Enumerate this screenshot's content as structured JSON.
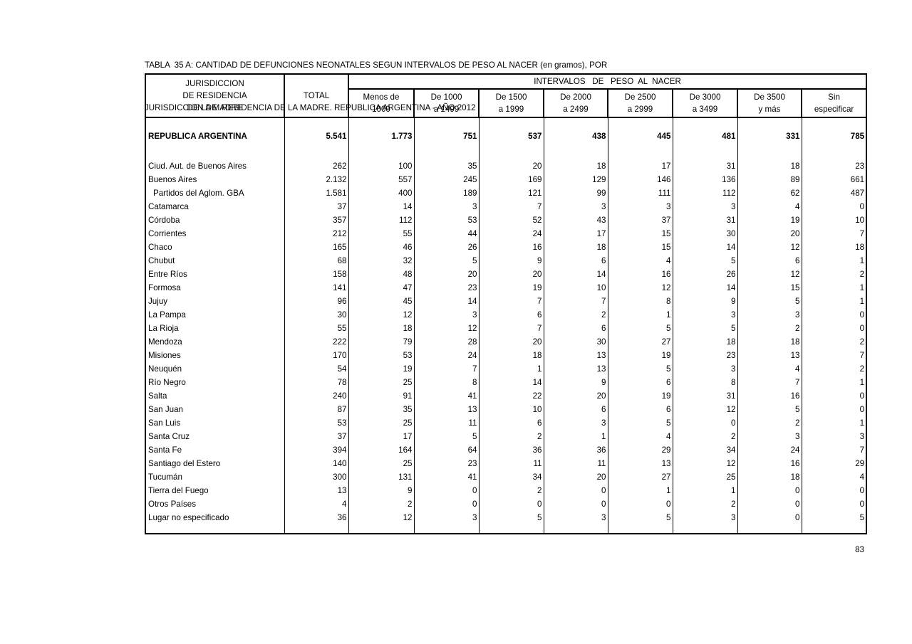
{
  "page": {
    "title_line1": "TABLA  35 A: CANTIDAD DE DEFUNCIONES NEONATALES SEGUN INTERVALOS DE PESO AL NACER (en gramos), POR",
    "title_line2": "JURISDICCION DE  RESIDENCIA DE LA MADRE. REPUBLICA ARGENTINA - AÑO 2012",
    "page_number": "83"
  },
  "colors": {
    "text": "#000000",
    "background": "#ffffff",
    "border": "#000000"
  },
  "table": {
    "header": {
      "col_jurisdiccion": [
        "JURISDICCION",
        "DE RESIDENCIA",
        "DE LA MADRE"
      ],
      "col_total": "TOTAL",
      "group_header": "INTERVALOS   DE   PESO  AL  NACER",
      "weight_columns": [
        [
          "Menos de",
          "1000"
        ],
        [
          "De 1000",
          "a 1499"
        ],
        [
          "De 1500",
          "a 1999"
        ],
        [
          "De 2000",
          "a 2499"
        ],
        [
          "De 2500",
          "a 2999"
        ],
        [
          "De 3000",
          "a 3499"
        ],
        [
          "De 3500",
          "y más"
        ],
        [
          "Sin",
          "especificar"
        ]
      ]
    },
    "total_row": {
      "label": "REPUBLICA ARGENTINA",
      "values": [
        "5.541",
        "1.773",
        "751",
        "537",
        "438",
        "445",
        "481",
        "331",
        "785"
      ]
    },
    "rows": [
      {
        "label": "Ciud. Aut. de Buenos Aires",
        "indent": false,
        "values": [
          "262",
          "100",
          "35",
          "20",
          "18",
          "17",
          "31",
          "18",
          "23"
        ]
      },
      {
        "label": "Buenos Aires",
        "indent": false,
        "values": [
          "2.132",
          "557",
          "245",
          "169",
          "129",
          "146",
          "136",
          "89",
          "661"
        ]
      },
      {
        "label": "Partidos del Aglom. GBA",
        "indent": true,
        "values": [
          "1.581",
          "400",
          "189",
          "121",
          "99",
          "111",
          "112",
          "62",
          "487"
        ]
      },
      {
        "label": "Catamarca",
        "indent": false,
        "values": [
          "37",
          "14",
          "3",
          "7",
          "3",
          "3",
          "3",
          "4",
          "0"
        ]
      },
      {
        "label": "Córdoba",
        "indent": false,
        "values": [
          "357",
          "112",
          "53",
          "52",
          "43",
          "37",
          "31",
          "19",
          "10"
        ]
      },
      {
        "label": "Corrientes",
        "indent": false,
        "values": [
          "212",
          "55",
          "44",
          "24",
          "17",
          "15",
          "30",
          "20",
          "7"
        ]
      },
      {
        "label": "Chaco",
        "indent": false,
        "values": [
          "165",
          "46",
          "26",
          "16",
          "18",
          "15",
          "14",
          "12",
          "18"
        ]
      },
      {
        "label": "Chubut",
        "indent": false,
        "values": [
          "68",
          "32",
          "5",
          "9",
          "6",
          "4",
          "5",
          "6",
          "1"
        ]
      },
      {
        "label": "Entre Ríos",
        "indent": false,
        "values": [
          "158",
          "48",
          "20",
          "20",
          "14",
          "16",
          "26",
          "12",
          "2"
        ]
      },
      {
        "label": "Formosa",
        "indent": false,
        "values": [
          "141",
          "47",
          "23",
          "19",
          "10",
          "12",
          "14",
          "15",
          "1"
        ]
      },
      {
        "label": "Jujuy",
        "indent": false,
        "values": [
          "96",
          "45",
          "14",
          "7",
          "7",
          "8",
          "9",
          "5",
          "1"
        ]
      },
      {
        "label": "La Pampa",
        "indent": false,
        "values": [
          "30",
          "12",
          "3",
          "6",
          "2",
          "1",
          "3",
          "3",
          "0"
        ]
      },
      {
        "label": "La Rioja",
        "indent": false,
        "values": [
          "55",
          "18",
          "12",
          "7",
          "6",
          "5",
          "5",
          "2",
          "0"
        ]
      },
      {
        "label": "Mendoza",
        "indent": false,
        "values": [
          "222",
          "79",
          "28",
          "20",
          "30",
          "27",
          "18",
          "18",
          "2"
        ]
      },
      {
        "label": "Misiones",
        "indent": false,
        "values": [
          "170",
          "53",
          "24",
          "18",
          "13",
          "19",
          "23",
          "13",
          "7"
        ]
      },
      {
        "label": "Neuquén",
        "indent": false,
        "values": [
          "54",
          "19",
          "7",
          "1",
          "13",
          "5",
          "3",
          "4",
          "2"
        ]
      },
      {
        "label": "Río Negro",
        "indent": false,
        "values": [
          "78",
          "25",
          "8",
          "14",
          "9",
          "6",
          "8",
          "7",
          "1"
        ]
      },
      {
        "label": "Salta",
        "indent": false,
        "values": [
          "240",
          "91",
          "41",
          "22",
          "20",
          "19",
          "31",
          "16",
          "0"
        ]
      },
      {
        "label": "San Juan",
        "indent": false,
        "values": [
          "87",
          "35",
          "13",
          "10",
          "6",
          "6",
          "12",
          "5",
          "0"
        ]
      },
      {
        "label": "San Luis",
        "indent": false,
        "values": [
          "53",
          "25",
          "11",
          "6",
          "3",
          "5",
          "0",
          "2",
          "1"
        ]
      },
      {
        "label": "Santa Cruz",
        "indent": false,
        "values": [
          "37",
          "17",
          "5",
          "2",
          "1",
          "4",
          "2",
          "3",
          "3"
        ]
      },
      {
        "label": "Santa Fe",
        "indent": false,
        "values": [
          "394",
          "164",
          "64",
          "36",
          "36",
          "29",
          "34",
          "24",
          "7"
        ]
      },
      {
        "label": "Santiago del Estero",
        "indent": false,
        "values": [
          "140",
          "25",
          "23",
          "11",
          "11",
          "13",
          "12",
          "16",
          "29"
        ]
      },
      {
        "label": "Tucumán",
        "indent": false,
        "values": [
          "300",
          "131",
          "41",
          "34",
          "20",
          "27",
          "25",
          "18",
          "4"
        ]
      },
      {
        "label": "Tierra del Fuego",
        "indent": false,
        "values": [
          "13",
          "9",
          "0",
          "2",
          "0",
          "1",
          "1",
          "0",
          "0"
        ]
      },
      {
        "label": "Otros Países",
        "indent": false,
        "values": [
          "4",
          "2",
          "0",
          "0",
          "0",
          "0",
          "2",
          "0",
          "0"
        ]
      },
      {
        "label": "Lugar no especificado",
        "indent": false,
        "values": [
          "36",
          "12",
          "3",
          "5",
          "3",
          "5",
          "3",
          "0",
          "5"
        ]
      }
    ]
  }
}
